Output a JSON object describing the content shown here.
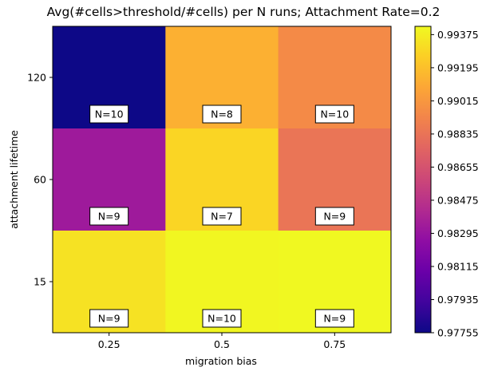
{
  "chart_data": {
    "type": "heatmap",
    "title": "Avg(#cells>threshold/#cells) per N runs; Attachment Rate=0.2",
    "xlabel": "migration bias",
    "ylabel": "attachment lifetime",
    "x_categories": [
      "0.25",
      "0.5",
      "0.75"
    ],
    "y_categories": [
      "120",
      "60",
      "15"
    ],
    "cells": [
      [
        {
          "value": 0.97755,
          "label": "N=10"
        },
        {
          "value": 0.9913,
          "label": "N=8"
        },
        {
          "value": 0.9895,
          "label": "N=10"
        }
      ],
      [
        {
          "value": 0.9833,
          "label": "N=9"
        },
        {
          "value": 0.9928,
          "label": "N=7"
        },
        {
          "value": 0.9884,
          "label": "N=9"
        }
      ],
      [
        {
          "value": 0.9933,
          "label": "N=9"
        },
        {
          "value": 0.9941,
          "label": "N=10"
        },
        {
          "value": 0.99415,
          "label": "N=9"
        }
      ]
    ],
    "colorbar": {
      "min": 0.97755,
      "max": 0.9942,
      "ticks": [
        "0.99375",
        "0.99195",
        "0.99015",
        "0.98835",
        "0.98655",
        "0.98475",
        "0.98295",
        "0.98115",
        "0.97935",
        "0.97755"
      ],
      "colormap": "plasma"
    }
  }
}
